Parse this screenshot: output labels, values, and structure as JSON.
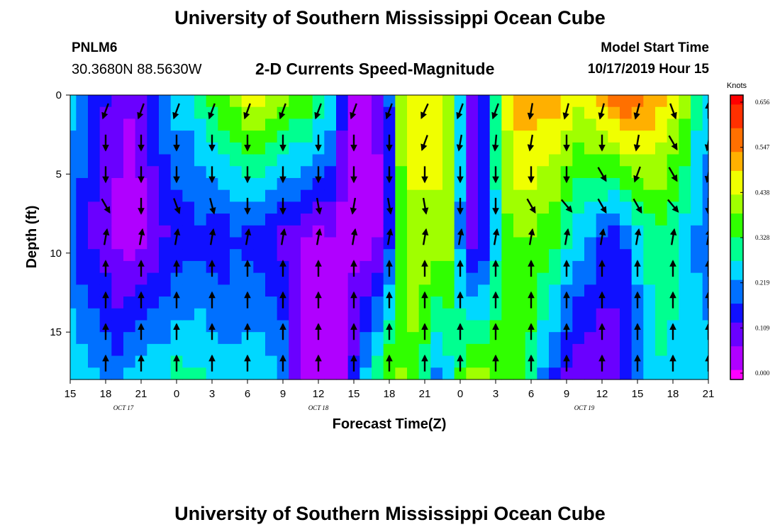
{
  "header": {
    "title": "University of Southern Mississippi Ocean Cube",
    "station_id": "PNLM6",
    "station_coords": "30.3680N 88.5630W",
    "chart_title": "2-D Currents Speed-Magnitude",
    "model_start_label": "Model Start Time",
    "model_start_value": "10/17/2019 Hour 15"
  },
  "footer": {
    "title": "University of Southern Mississippi Ocean Cube"
  },
  "chart_data": {
    "type": "heatmap",
    "title": "2-D Currents Speed-Magnitude",
    "xlabel": "Forecast Time(Z)",
    "ylabel": "Depth (ft)",
    "x_range_hours": [
      0,
      54
    ],
    "x_ticks": [
      "15",
      "18",
      "21",
      "0",
      "3",
      "6",
      "9",
      "12",
      "15",
      "18",
      "21",
      "0",
      "3",
      "6",
      "9",
      "12",
      "15",
      "18",
      "21"
    ],
    "date_labels": [
      {
        "label": "OCT 17",
        "hour": 4.5
      },
      {
        "label": "OCT 18",
        "hour": 21
      },
      {
        "label": "OCT 19",
        "hour": 43.5
      }
    ],
    "y_range": [
      0,
      18
    ],
    "y_ticks": [
      0,
      5,
      10,
      15
    ],
    "colorbar": {
      "label": "Knots",
      "ticks": [
        "0.656",
        "0.547",
        "0.438",
        "0.328",
        "0.219",
        "0.109",
        "0.000"
      ],
      "colors": [
        "#ff00ff",
        "#b000ff",
        "#6a00ff",
        "#1010ff",
        "#0070ff",
        "#00d8ff",
        "#00ff90",
        "#30ff00",
        "#a0ff00",
        "#f0ff00",
        "#ffb000",
        "#ff7000",
        "#ff3000",
        "#ff0000"
      ]
    },
    "speed_profile": {
      "hours": [
        0,
        1,
        2,
        3,
        4,
        5,
        6,
        7,
        8,
        9,
        10,
        11,
        12,
        13,
        14,
        15,
        16,
        17,
        18,
        19,
        20,
        21,
        22,
        23,
        24,
        25,
        26,
        27,
        28,
        29,
        30,
        31,
        32,
        33,
        34,
        35,
        36,
        37,
        38,
        39,
        40,
        41,
        42,
        43,
        44,
        45,
        46,
        47,
        48,
        49,
        50,
        51,
        52,
        53,
        54
      ],
      "surface": [
        0.24,
        0.22,
        0.17,
        0.13,
        0.1,
        0.08,
        0.1,
        0.17,
        0.22,
        0.25,
        0.25,
        0.3,
        0.35,
        0.38,
        0.4,
        0.45,
        0.45,
        0.44,
        0.41,
        0.39,
        0.37,
        0.33,
        0.27,
        0.15,
        0.06,
        0.05,
        0.08,
        0.18,
        0.4,
        0.45,
        0.45,
        0.45,
        0.42,
        0.25,
        0.12,
        0.17,
        0.32,
        0.45,
        0.52,
        0.52,
        0.5,
        0.5,
        0.47,
        0.45,
        0.48,
        0.52,
        0.56,
        0.58,
        0.55,
        0.53,
        0.5,
        0.45,
        0.4,
        0.3,
        0.25
      ],
      "mid": [
        0.19,
        0.14,
        0.11,
        0.09,
        0.06,
        0.05,
        0.06,
        0.08,
        0.12,
        0.14,
        0.15,
        0.16,
        0.14,
        0.14,
        0.17,
        0.16,
        0.14,
        0.13,
        0.11,
        0.09,
        0.07,
        0.06,
        0.07,
        0.05,
        0.05,
        0.05,
        0.07,
        0.15,
        0.36,
        0.42,
        0.42,
        0.42,
        0.4,
        0.22,
        0.1,
        0.14,
        0.26,
        0.36,
        0.38,
        0.38,
        0.36,
        0.34,
        0.29,
        0.25,
        0.22,
        0.18,
        0.15,
        0.18,
        0.24,
        0.29,
        0.31,
        0.29,
        0.26,
        0.22,
        0.19
      ],
      "bottom": [
        0.27,
        0.25,
        0.24,
        0.22,
        0.2,
        0.24,
        0.27,
        0.27,
        0.27,
        0.3,
        0.29,
        0.29,
        0.27,
        0.26,
        0.25,
        0.26,
        0.27,
        0.25,
        0.22,
        0.12,
        0.07,
        0.05,
        0.05,
        0.06,
        0.14,
        0.25,
        0.32,
        0.38,
        0.38,
        0.36,
        0.3,
        0.2,
        0.26,
        0.34,
        0.4,
        0.39,
        0.37,
        0.36,
        0.34,
        0.3,
        0.22,
        0.16,
        0.11,
        0.08,
        0.08,
        0.08,
        0.1,
        0.14,
        0.2,
        0.25,
        0.27,
        0.27,
        0.27,
        0.25,
        0.25
      ]
    },
    "vector_grid": {
      "hours": [
        3,
        6,
        9,
        12,
        15,
        18,
        21,
        24,
        27,
        30,
        33,
        36,
        39,
        42,
        45,
        48,
        51,
        54
      ],
      "depths_ft": [
        1,
        3,
        5,
        7,
        9,
        11,
        13,
        15,
        17
      ],
      "direction_deg": [
        [
          200,
          200,
          200,
          200,
          200,
          200,
          200,
          200,
          200,
          205,
          200,
          200,
          190,
          195,
          195,
          195,
          160,
          0
        ],
        [
          180,
          180,
          180,
          180,
          180,
          180,
          180,
          180,
          180,
          200,
          190,
          185,
          190,
          180,
          180,
          190,
          150,
          190
        ],
        [
          180,
          180,
          180,
          180,
          180,
          180,
          180,
          180,
          180,
          180,
          180,
          180,
          180,
          180,
          150,
          200,
          150,
          190
        ],
        [
          150,
          180,
          160,
          165,
          180,
          180,
          170,
          190,
          170,
          170,
          180,
          180,
          150,
          140,
          150,
          150,
          140,
          180
        ],
        [
          10,
          10,
          10,
          10,
          10,
          10,
          10,
          10,
          10,
          10,
          10,
          10,
          10,
          10,
          10,
          10,
          10,
          10
        ],
        [
          0,
          0,
          0,
          0,
          0,
          0,
          0,
          0,
          0,
          0,
          0,
          0,
          0,
          0,
          0,
          0,
          0,
          0
        ],
        [
          0,
          0,
          0,
          0,
          0,
          0,
          0,
          0,
          0,
          0,
          0,
          0,
          0,
          0,
          0,
          0,
          0,
          0
        ],
        [
          0,
          0,
          0,
          0,
          0,
          0,
          0,
          0,
          0,
          0,
          0,
          0,
          0,
          0,
          0,
          0,
          0,
          0
        ],
        [
          0,
          0,
          0,
          0,
          0,
          0,
          0,
          0,
          0,
          0,
          0,
          0,
          0,
          0,
          0,
          0,
          0,
          0
        ]
      ]
    }
  }
}
